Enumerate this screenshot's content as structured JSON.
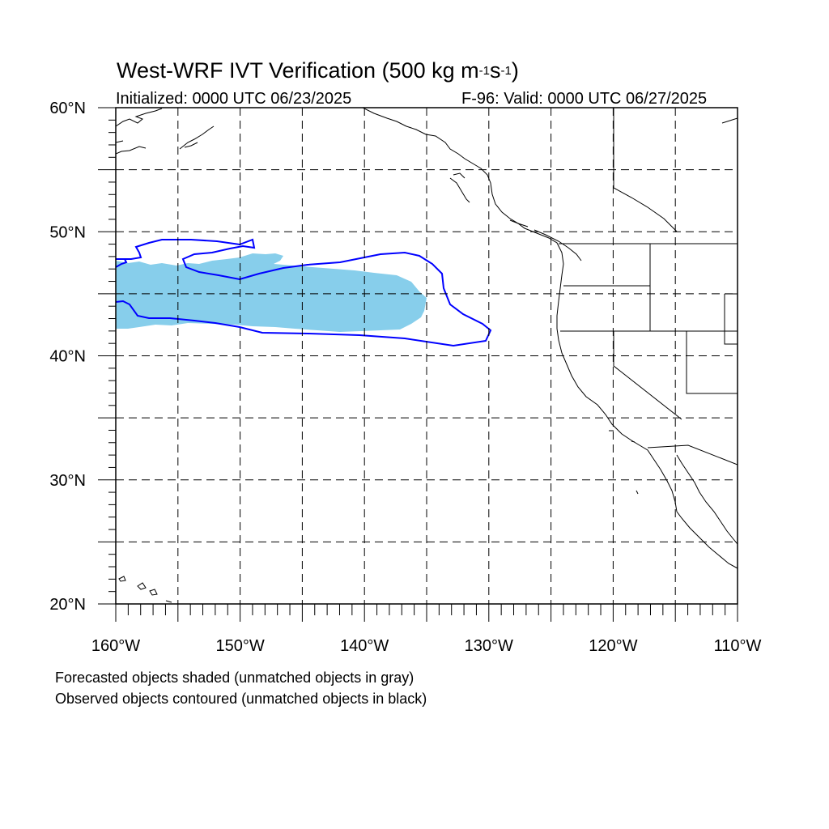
{
  "title": {
    "prefix": "West-WRF IVT Verification (500 kg m",
    "exp1": "-1",
    "mid": "s",
    "exp2": "-1",
    "suffix": ")"
  },
  "initialized": "Initialized: 0000 UTC 06/23/2025",
  "valid": "F-96: Valid: 0000 UTC 06/27/2025",
  "captions": [
    "Forecasted objects shaded (unmatched objects in gray)",
    "Observed objects contoured (unmatched objects in black)"
  ],
  "colors": {
    "forecast_shade": "#87CEEB",
    "observed_contour": "#0000FF",
    "coastline": "#000000",
    "grid": "#000000"
  },
  "map": {
    "projection": "cylindrical equidistant",
    "lon_range": [
      -160,
      -110
    ],
    "lat_range": [
      20,
      60
    ],
    "grid_lines": "dashed every 5 degrees",
    "lat_labels": [
      {
        "lat": 60,
        "text": "60°N"
      },
      {
        "lat": 50,
        "text": "50°N"
      },
      {
        "lat": 40,
        "text": "40°N"
      },
      {
        "lat": 30,
        "text": "30°N"
      },
      {
        "lat": 20,
        "text": "20°N"
      }
    ],
    "lon_labels": [
      {
        "lon": -160,
        "text": "160°W"
      },
      {
        "lon": -150,
        "text": "150°W"
      },
      {
        "lon": -140,
        "text": "140°W"
      },
      {
        "lon": -130,
        "text": "130°W"
      },
      {
        "lon": -120,
        "text": "120°W"
      },
      {
        "lon": -110,
        "text": "110°W"
      }
    ]
  }
}
